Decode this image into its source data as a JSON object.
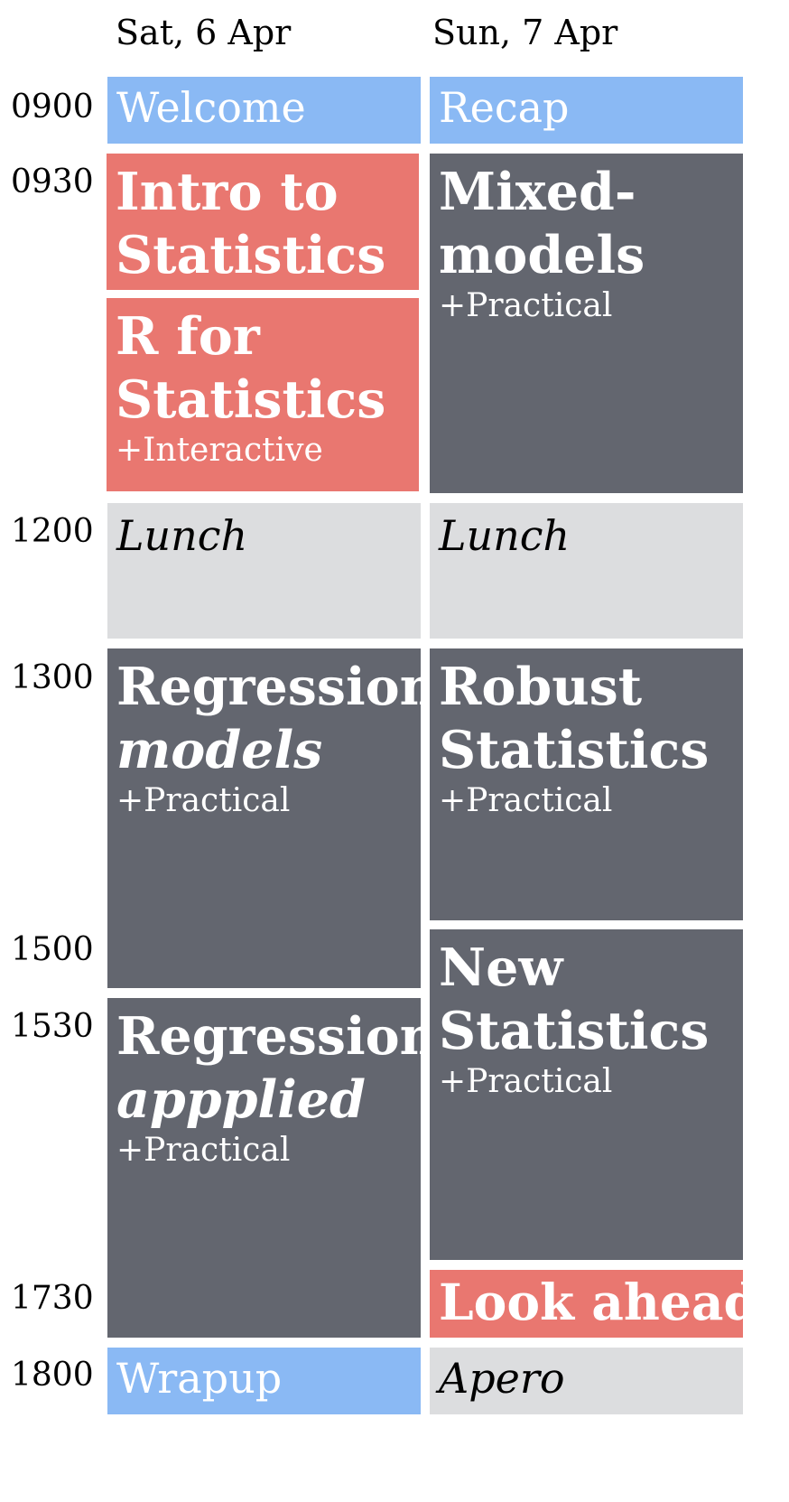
{
  "days": [
    {
      "label": "Sat, 6 Apr"
    },
    {
      "label": "Sun, 7 Apr"
    }
  ],
  "times": [
    "0900",
    "0930",
    "1200",
    "1300",
    "1500",
    "1530",
    "1730",
    "1800"
  ],
  "colors": {
    "blue": "#8ab9f4",
    "red": "#e97770",
    "dark": "#63666f",
    "light": "#dcdddf"
  },
  "sat": {
    "welcome": "Welcome",
    "intro_line1": "Intro to",
    "intro_line2": "Statistics",
    "r_line1": "R for",
    "r_line2": "Statistics",
    "r_sub": "+Interactive",
    "lunch": "Lunch",
    "regmodels_line1": "Regression",
    "regmodels_line2": "models",
    "regmodels_sub": "+Practical",
    "regapplied_line1": "Regression",
    "regapplied_line2": "appplied",
    "regapplied_sub": "+Practical",
    "wrapup": "Wrapup"
  },
  "sun": {
    "recap": "Recap",
    "mixed_line1": "Mixed-",
    "mixed_line2": "models",
    "mixed_sub": "+Practical",
    "lunch": "Lunch",
    "robust_line1": "Robust",
    "robust_line2": "Statistics",
    "robust_sub": "+Practical",
    "newstats_line1": "New",
    "newstats_line2": "Statistics",
    "newstats_sub": "+Practical",
    "lookahead": "Look ahead",
    "apero": "Apero"
  }
}
